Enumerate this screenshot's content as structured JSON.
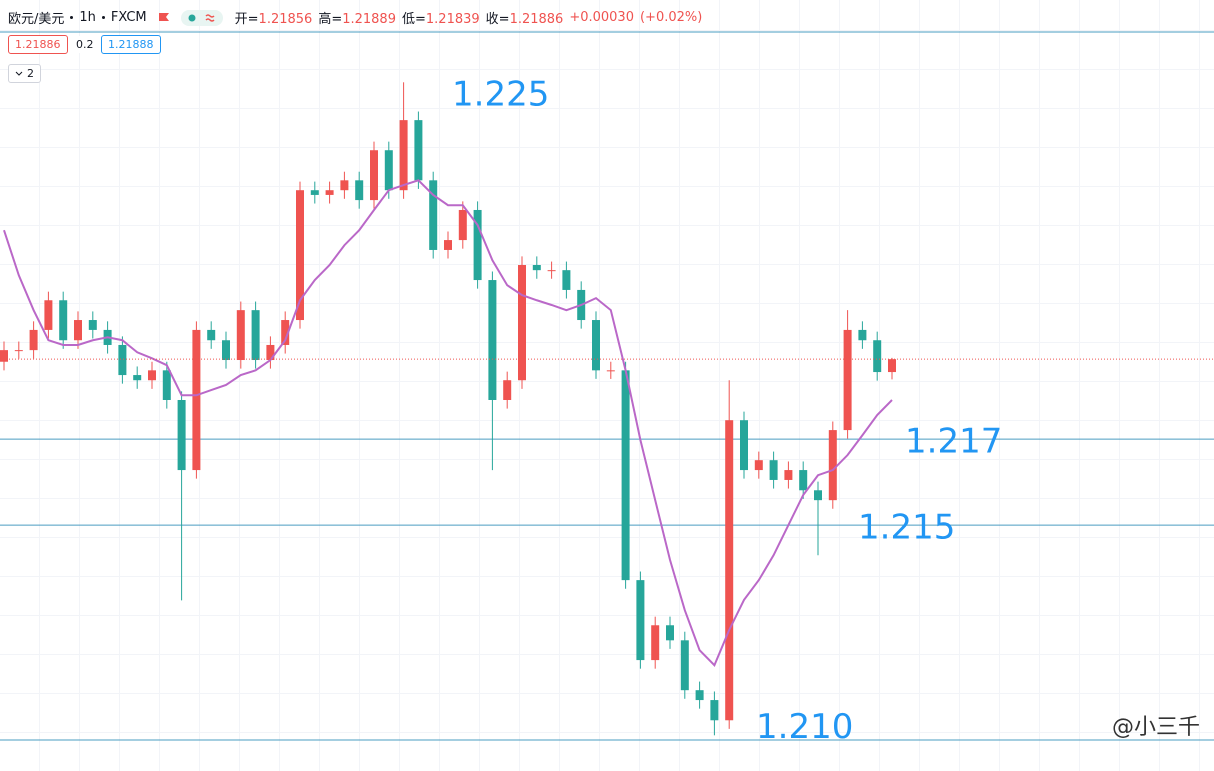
{
  "header": {
    "symbol": "欧元/美元",
    "interval": "1h",
    "source": "FXCM",
    "ohlc_labels": [
      "开=",
      "高=",
      "低=",
      "收="
    ],
    "change": "+0.00030",
    "change_pct": "(+0.02%)",
    "bid": 1.21886,
    "spread": 0.2,
    "ask": 1.21888,
    "indicator_count": 2
  },
  "watermark": "@小三千",
  "chart_data": {
    "type": "candlestick",
    "up_color": "#ef5350",
    "down_color": "#26a69a",
    "ylim": [
      1.20928,
      1.22647
    ],
    "open": [
      1.2188,
      1.21907,
      1.21907,
      1.21954,
      1.22023,
      1.2193,
      1.21977,
      1.21954,
      1.21919,
      1.21849,
      1.21837,
      1.2186,
      1.21791,
      1.21628,
      1.21954,
      1.2193,
      1.21884,
      1.22,
      1.21884,
      1.21919,
      1.21977,
      1.22279,
      1.22268,
      1.22279,
      1.22302,
      1.22256,
      1.22372,
      1.22279,
      1.22442,
      1.22302,
      1.2214,
      1.22163,
      1.22233,
      1.2207,
      1.21791,
      1.21837,
      1.22105,
      1.22093,
      1.22093,
      1.22047,
      1.21977,
      1.2186,
      1.2186,
      1.21372,
      1.21186,
      1.21267,
      1.21232,
      1.21116,
      1.21093,
      1.21046,
      1.21744,
      1.21628,
      1.21651,
      1.21605,
      1.21628,
      1.21581,
      1.21558,
      1.21721,
      1.21954,
      1.2193,
      1.21856
    ],
    "high": [
      1.21927,
      1.21927,
      1.21974,
      1.22043,
      1.22043,
      1.21997,
      1.21997,
      1.21974,
      1.21939,
      1.21869,
      1.2188,
      1.2188,
      1.21811,
      1.21974,
      1.21974,
      1.2195,
      1.2202,
      1.2202,
      1.21939,
      1.21997,
      1.22299,
      1.22299,
      1.22299,
      1.22322,
      1.22322,
      1.22392,
      1.22392,
      1.2253,
      1.22462,
      1.22322,
      1.22183,
      1.22253,
      1.22253,
      1.2209,
      1.21857,
      1.22125,
      1.22125,
      1.22113,
      1.22113,
      1.22067,
      1.21997,
      1.2188,
      1.2188,
      1.21392,
      1.21287,
      1.21287,
      1.21252,
      1.21136,
      1.21113,
      1.21837,
      1.21764,
      1.21671,
      1.21671,
      1.21648,
      1.21648,
      1.21601,
      1.21741,
      1.22,
      1.21974,
      1.2195,
      1.21889
    ],
    "low": [
      1.2186,
      1.21887,
      1.21887,
      1.21934,
      1.2191,
      1.2191,
      1.21934,
      1.21899,
      1.21829,
      1.21817,
      1.21817,
      1.21771,
      1.21325,
      1.21608,
      1.2191,
      1.21864,
      1.21864,
      1.21864,
      1.21864,
      1.21899,
      1.21957,
      1.22248,
      1.22248,
      1.22259,
      1.22236,
      1.22236,
      1.22259,
      1.22259,
      1.22282,
      1.2212,
      1.2212,
      1.22143,
      1.2205,
      1.21628,
      1.21771,
      1.21817,
      1.22073,
      1.22073,
      1.22027,
      1.21957,
      1.2184,
      1.2184,
      1.21352,
      1.21166,
      1.21166,
      1.21212,
      1.21096,
      1.21073,
      1.21011,
      1.21026,
      1.21608,
      1.21608,
      1.21585,
      1.21585,
      1.21561,
      1.2143,
      1.21538,
      1.21701,
      1.2191,
      1.21836,
      1.21839
    ],
    "close": [
      1.21907,
      1.21907,
      1.21954,
      1.22023,
      1.2193,
      1.21977,
      1.21954,
      1.21919,
      1.21849,
      1.21837,
      1.2186,
      1.21791,
      1.21628,
      1.21954,
      1.2193,
      1.21884,
      1.22,
      1.21884,
      1.21919,
      1.21977,
      1.22279,
      1.22268,
      1.22279,
      1.22302,
      1.22256,
      1.22372,
      1.22279,
      1.22442,
      1.22302,
      1.2214,
      1.22163,
      1.22233,
      1.2207,
      1.21791,
      1.21837,
      1.22105,
      1.22093,
      1.22093,
      1.22047,
      1.21977,
      1.2186,
      1.2186,
      1.21372,
      1.21186,
      1.21267,
      1.21232,
      1.21116,
      1.21093,
      1.21046,
      1.21744,
      1.21628,
      1.21651,
      1.21605,
      1.21628,
      1.21581,
      1.21558,
      1.21721,
      1.21954,
      1.2193,
      1.21856,
      1.21886
    ],
    "ma": {
      "color": "#ba68c8",
      "values": [
        1.22186,
        1.22081,
        1.22,
        1.2193,
        1.21919,
        1.21919,
        1.2193,
        1.21937,
        1.2193,
        1.21902,
        1.21888,
        1.21872,
        1.21802,
        1.21802,
        1.21814,
        1.21826,
        1.21849,
        1.2186,
        1.21884,
        1.2193,
        1.22023,
        1.2207,
        1.22105,
        1.22151,
        1.22186,
        1.22233,
        1.22279,
        1.22291,
        1.22302,
        1.22268,
        1.22244,
        1.22244,
        1.22198,
        1.22116,
        1.22058,
        1.22035,
        1.22023,
        1.22012,
        1.22,
        1.22012,
        1.22028,
        1.22,
        1.2186,
        1.21698,
        1.21558,
        1.21419,
        1.21302,
        1.21209,
        1.21174,
        1.21256,
        1.21326,
        1.21372,
        1.2143,
        1.215,
        1.2157,
        1.21616,
        1.21628,
        1.21663,
        1.21709,
        1.21756,
        1.21791
      ]
    },
    "hlines": [
      {
        "value": 1.217,
        "label": "1.217"
      },
      {
        "value": 1.215,
        "label": "1.215"
      },
      {
        "value": 1.21,
        "label": "1.210"
      }
    ],
    "line_color": "#4a9cc1",
    "label_color": "#2196f3",
    "annotations": [
      {
        "text": "1.225"
      }
    ]
  }
}
